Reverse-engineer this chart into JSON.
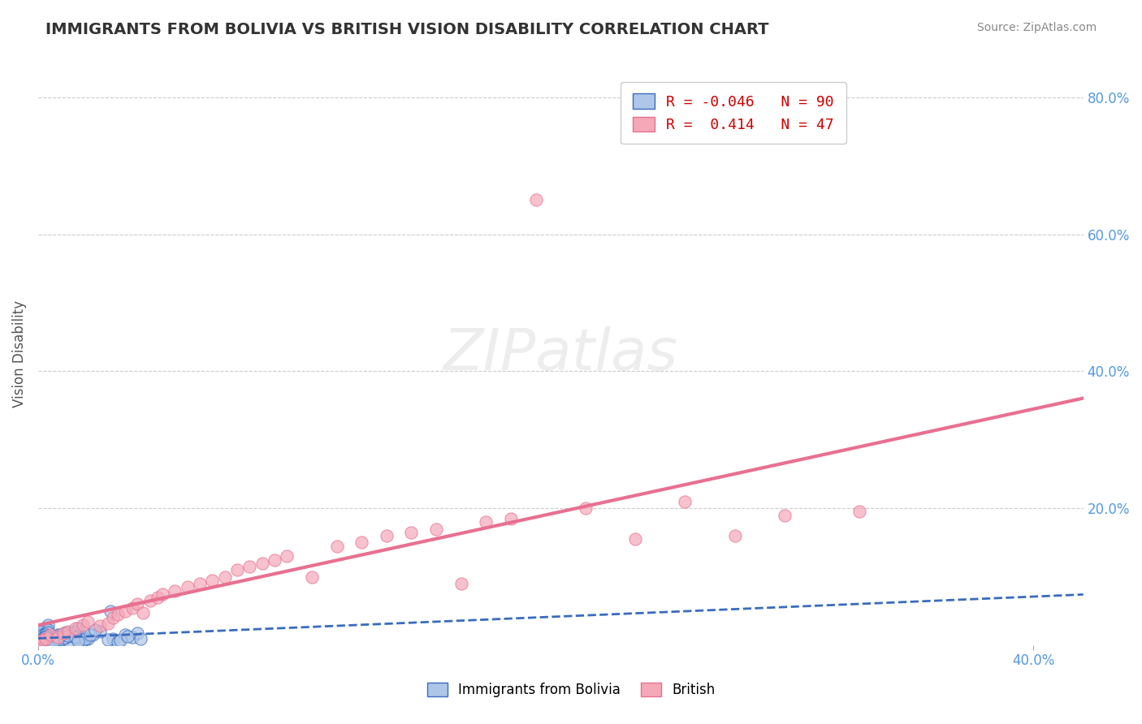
{
  "title": "IMMIGRANTS FROM BOLIVIA VS BRITISH VISION DISABILITY CORRELATION CHART",
  "source": "Source: ZipAtlas.com",
  "xlabel": "",
  "ylabel": "Vision Disability",
  "x_ticks": [
    0.0,
    0.1,
    0.2,
    0.3,
    0.4
  ],
  "x_tick_labels": [
    "0.0%",
    "",
    "",
    "",
    "40.0%"
  ],
  "y_ticks_right": [
    0.0,
    0.2,
    0.4,
    0.6,
    0.8
  ],
  "y_tick_labels_right": [
    "",
    "20.0%",
    "40.0%",
    "60.0%",
    "80.0%"
  ],
  "blue_label": "Immigrants from Bolivia",
  "pink_label": "British",
  "blue_R": -0.046,
  "blue_N": 90,
  "pink_R": 0.414,
  "pink_N": 47,
  "blue_color": "#aec6e8",
  "pink_color": "#f4a8b8",
  "blue_line_color": "#3a6bbf",
  "pink_line_color": "#e87090",
  "background_color": "#ffffff",
  "grid_color": "#cccccc",
  "title_color": "#333333",
  "axis_label_color": "#5599dd",
  "right_tick_color": "#5599dd",
  "watermark_color": "#dddddd",
  "blue_scatter_x": [
    0.001,
    0.002,
    0.001,
    0.003,
    0.002,
    0.004,
    0.001,
    0.002,
    0.003,
    0.001,
    0.005,
    0.002,
    0.001,
    0.003,
    0.004,
    0.001,
    0.002,
    0.003,
    0.001,
    0.002,
    0.006,
    0.001,
    0.002,
    0.003,
    0.001,
    0.002,
    0.004,
    0.001,
    0.003,
    0.002,
    0.001,
    0.005,
    0.002,
    0.001,
    0.003,
    0.002,
    0.001,
    0.004,
    0.002,
    0.001,
    0.003,
    0.001,
    0.002,
    0.001,
    0.002,
    0.003,
    0.001,
    0.002,
    0.001,
    0.003,
    0.01,
    0.008,
    0.012,
    0.015,
    0.007,
    0.009,
    0.011,
    0.006,
    0.013,
    0.008,
    0.016,
    0.005,
    0.01,
    0.009,
    0.007,
    0.014,
    0.011,
    0.008,
    0.006,
    0.012,
    0.02,
    0.018,
    0.022,
    0.017,
    0.015,
    0.019,
    0.025,
    0.016,
    0.021,
    0.023,
    0.03,
    0.028,
    0.035,
    0.032,
    0.038,
    0.04,
    0.033,
    0.036,
    0.041,
    0.029
  ],
  "blue_scatter_y": [
    0.01,
    0.02,
    0.005,
    0.015,
    0.008,
    0.03,
    0.01,
    0.005,
    0.02,
    0.012,
    0.008,
    0.018,
    0.005,
    0.025,
    0.01,
    0.003,
    0.015,
    0.007,
    0.02,
    0.006,
    0.012,
    0.004,
    0.009,
    0.018,
    0.003,
    0.011,
    0.022,
    0.007,
    0.014,
    0.016,
    0.005,
    0.013,
    0.009,
    0.004,
    0.017,
    0.008,
    0.006,
    0.019,
    0.01,
    0.003,
    0.015,
    0.004,
    0.008,
    0.006,
    0.011,
    0.013,
    0.003,
    0.007,
    0.004,
    0.012,
    0.008,
    0.015,
    0.005,
    0.02,
    0.01,
    0.007,
    0.012,
    0.004,
    0.018,
    0.009,
    0.025,
    0.003,
    0.011,
    0.016,
    0.006,
    0.013,
    0.019,
    0.008,
    0.005,
    0.014,
    0.01,
    0.007,
    0.015,
    0.005,
    0.012,
    0.009,
    0.02,
    0.006,
    0.016,
    0.022,
    0.01,
    0.008,
    0.015,
    0.005,
    0.012,
    0.018,
    0.007,
    0.013,
    0.009,
    0.05
  ],
  "pink_scatter_x": [
    0.001,
    0.002,
    0.003,
    0.005,
    0.008,
    0.01,
    0.012,
    0.015,
    0.018,
    0.02,
    0.025,
    0.028,
    0.03,
    0.032,
    0.035,
    0.038,
    0.04,
    0.042,
    0.045,
    0.048,
    0.05,
    0.055,
    0.06,
    0.065,
    0.07,
    0.075,
    0.08,
    0.085,
    0.09,
    0.095,
    0.1,
    0.11,
    0.12,
    0.13,
    0.14,
    0.15,
    0.16,
    0.17,
    0.18,
    0.19,
    0.2,
    0.22,
    0.24,
    0.26,
    0.28,
    0.3,
    0.33
  ],
  "pink_scatter_y": [
    0.005,
    0.008,
    0.01,
    0.015,
    0.012,
    0.018,
    0.02,
    0.025,
    0.03,
    0.035,
    0.028,
    0.032,
    0.04,
    0.045,
    0.05,
    0.055,
    0.06,
    0.048,
    0.065,
    0.07,
    0.075,
    0.08,
    0.085,
    0.09,
    0.095,
    0.1,
    0.11,
    0.115,
    0.12,
    0.125,
    0.13,
    0.1,
    0.145,
    0.15,
    0.16,
    0.165,
    0.17,
    0.09,
    0.18,
    0.185,
    0.65,
    0.2,
    0.155,
    0.21,
    0.16,
    0.19,
    0.195
  ],
  "xlim": [
    0.0,
    0.42
  ],
  "ylim": [
    0.0,
    0.85
  ],
  "figsize": [
    14.06,
    8.92
  ],
  "dpi": 100
}
